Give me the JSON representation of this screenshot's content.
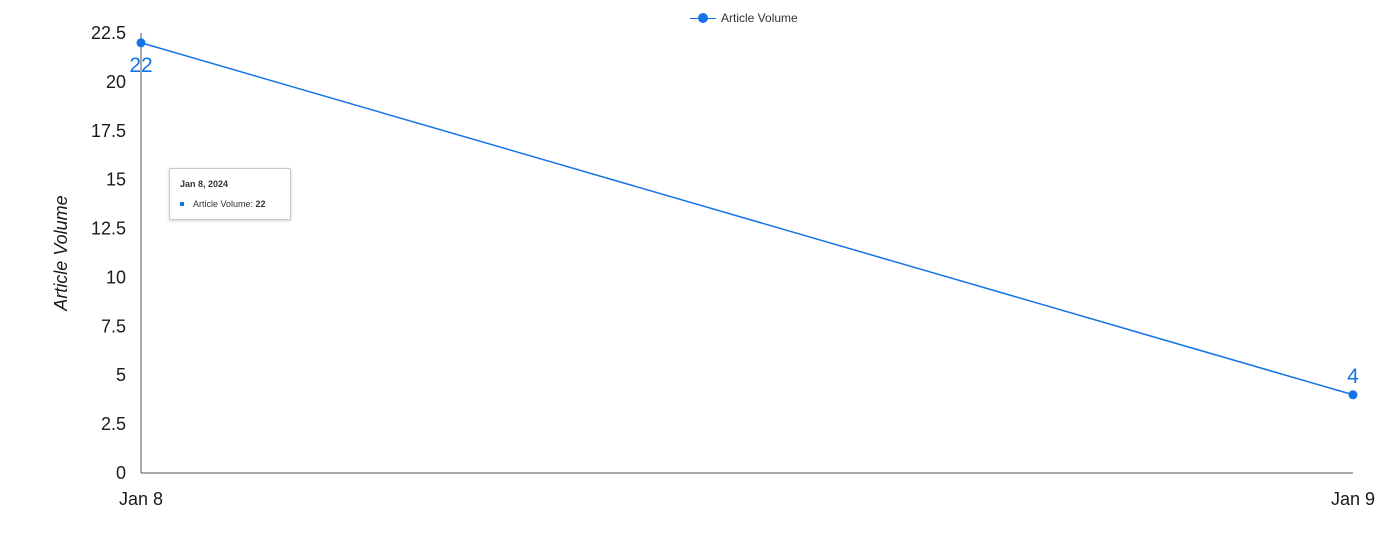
{
  "chart_data": {
    "type": "line",
    "categories": [
      "Jan 8",
      "Jan 9"
    ],
    "series": [
      {
        "name": "Article Volume",
        "values": [
          22,
          4
        ],
        "color": "#1473e6"
      }
    ],
    "ylabel": "Article Volume",
    "xlabel": "",
    "ylim": [
      0,
      22.5
    ],
    "yticks": [
      "0",
      "2.5",
      "5",
      "7.5",
      "10",
      "12.5",
      "15",
      "17.5",
      "20",
      "22.5"
    ],
    "data_labels": [
      "22",
      "4"
    ],
    "grid": false,
    "legend_position": "top-center",
    "tooltip": {
      "title": "Jan 8, 2024",
      "label": "Article Volume:",
      "value": "22"
    }
  }
}
